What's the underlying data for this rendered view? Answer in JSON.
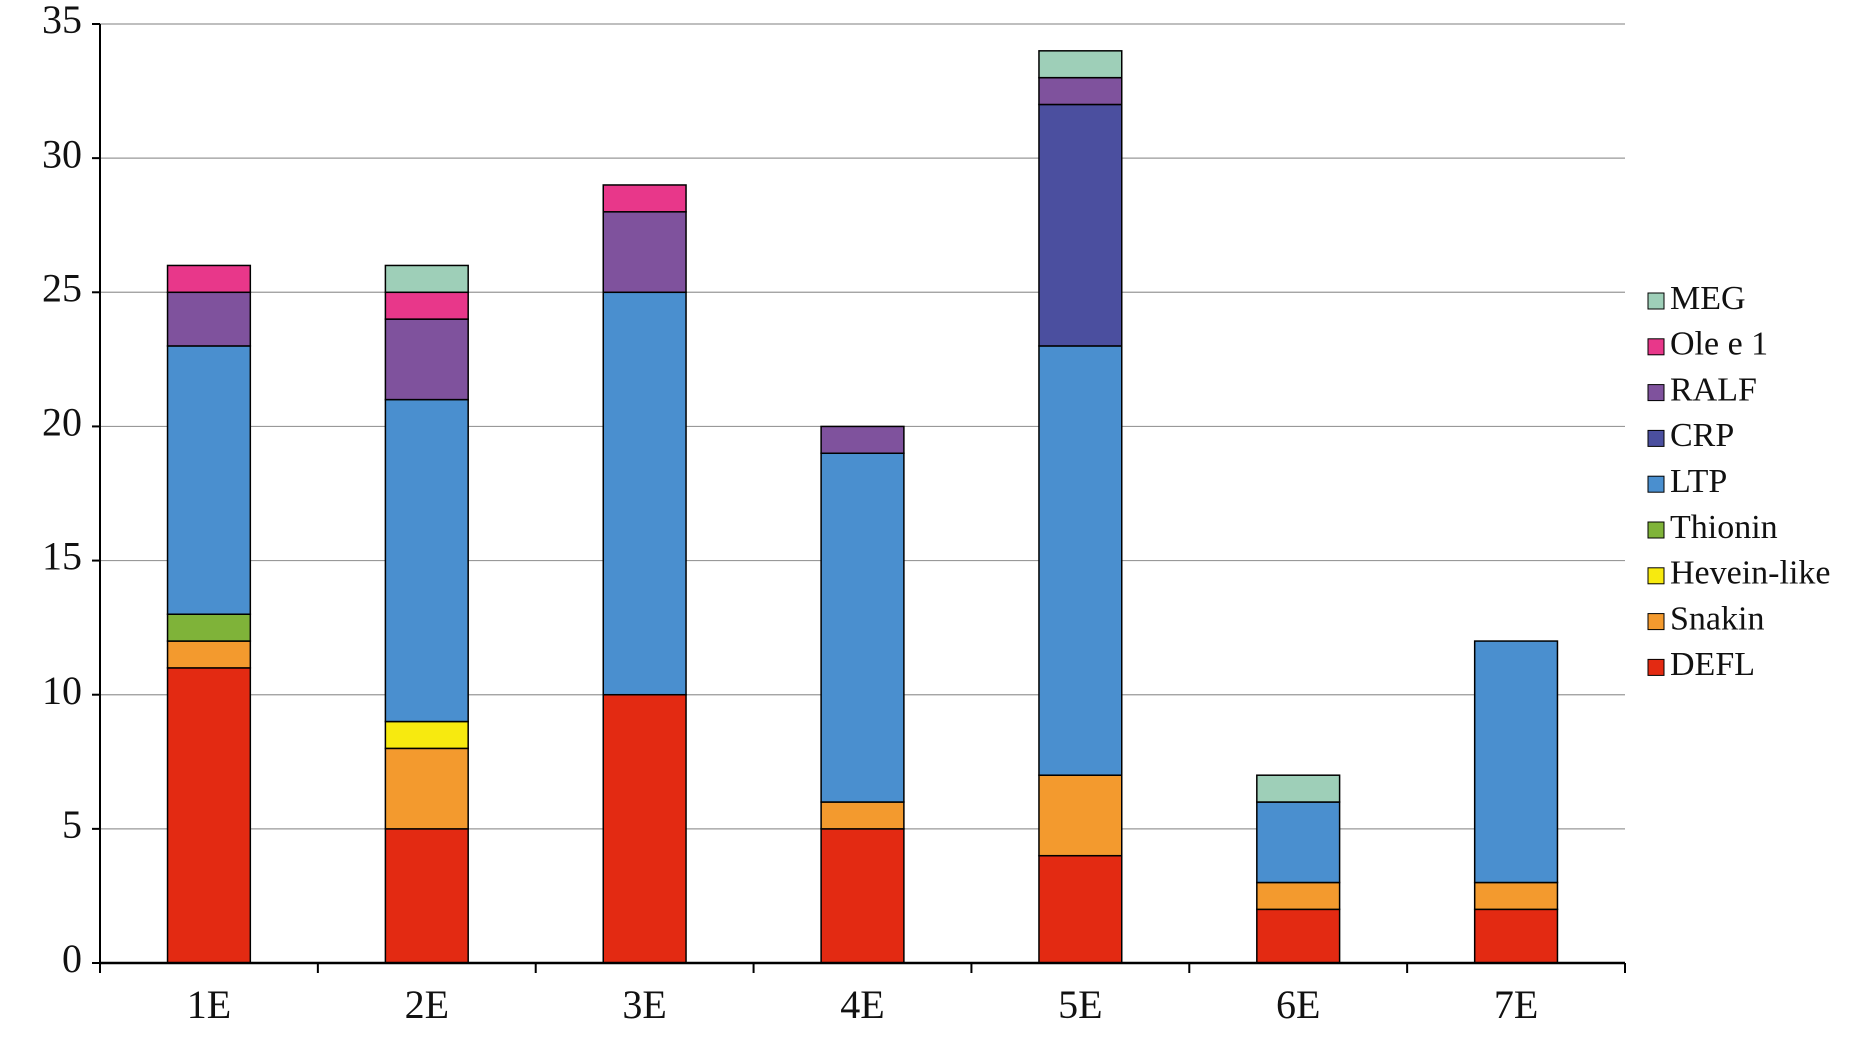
{
  "chart_data": {
    "type": "stacked_bar",
    "categories": [
      "1E",
      "2E",
      "3E",
      "4E",
      "5E",
      "6E",
      "7E"
    ],
    "series": [
      {
        "name": "DEFL",
        "color": "#e32a12",
        "values": [
          11,
          5,
          10,
          5,
          4,
          2,
          2
        ]
      },
      {
        "name": "Snakin",
        "color": "#f39a2e",
        "values": [
          1,
          3,
          0,
          1,
          3,
          1,
          1
        ]
      },
      {
        "name": "Hevein-like",
        "color": "#f7ea0f",
        "values": [
          0,
          1,
          0,
          0,
          0,
          0,
          0
        ]
      },
      {
        "name": "Thionin",
        "color": "#7fb339",
        "values": [
          1,
          0,
          0,
          0,
          0,
          0,
          0
        ]
      },
      {
        "name": "LTP",
        "color": "#4a8fcf",
        "values": [
          10,
          12,
          15,
          13,
          16,
          3,
          9
        ]
      },
      {
        "name": "CRP",
        "color": "#4b4f9f",
        "values": [
          0,
          0,
          0,
          0,
          9,
          0,
          0
        ]
      },
      {
        "name": "RALF",
        "color": "#7f529d",
        "values": [
          2,
          3,
          3,
          1,
          1,
          0,
          0
        ]
      },
      {
        "name": "Ole e 1",
        "color": "#e8378a",
        "values": [
          1,
          1,
          1,
          0,
          0,
          0,
          0
        ]
      },
      {
        "name": "MEG",
        "color": "#9ecfb8",
        "values": [
          0,
          1,
          0,
          0,
          1,
          1,
          0
        ]
      }
    ],
    "ylim": [
      0,
      35
    ],
    "yticks": [
      0,
      5,
      10,
      15,
      20,
      25,
      30,
      35
    ],
    "grid": true,
    "legend": "right"
  }
}
